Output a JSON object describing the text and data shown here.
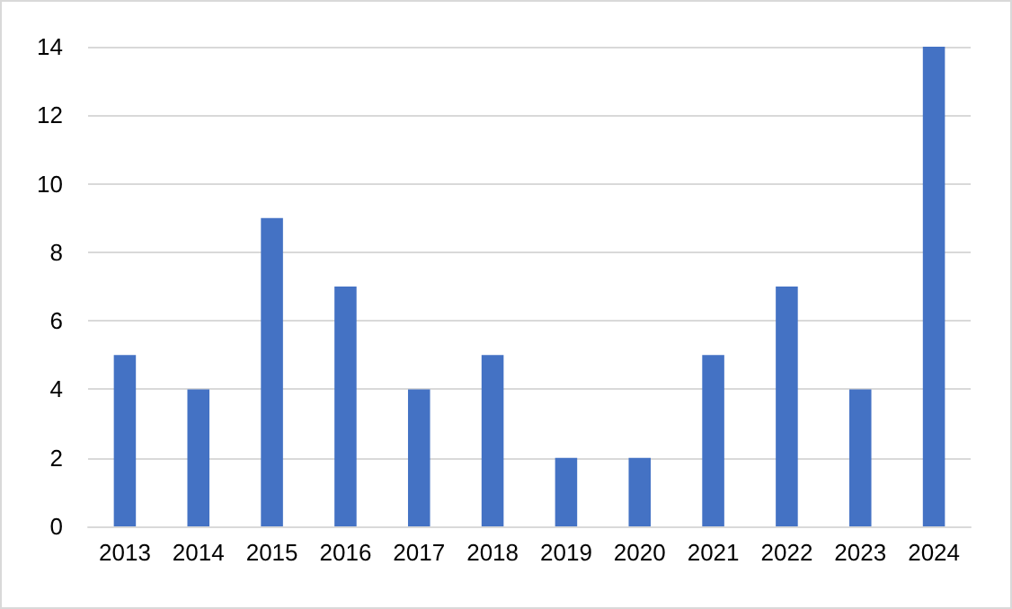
{
  "chart_data": {
    "type": "bar",
    "categories": [
      "2013",
      "2014",
      "2015",
      "2016",
      "2017",
      "2018",
      "2019",
      "2020",
      "2021",
      "2022",
      "2023",
      "2024"
    ],
    "values": [
      5,
      4,
      9,
      7,
      4,
      5,
      2,
      2,
      5,
      7,
      4,
      14
    ],
    "color": "#4472c4",
    "ylim": [
      0,
      14
    ],
    "yticks": [
      0,
      2,
      4,
      6,
      8,
      10,
      12,
      14
    ],
    "grid": "y"
  }
}
